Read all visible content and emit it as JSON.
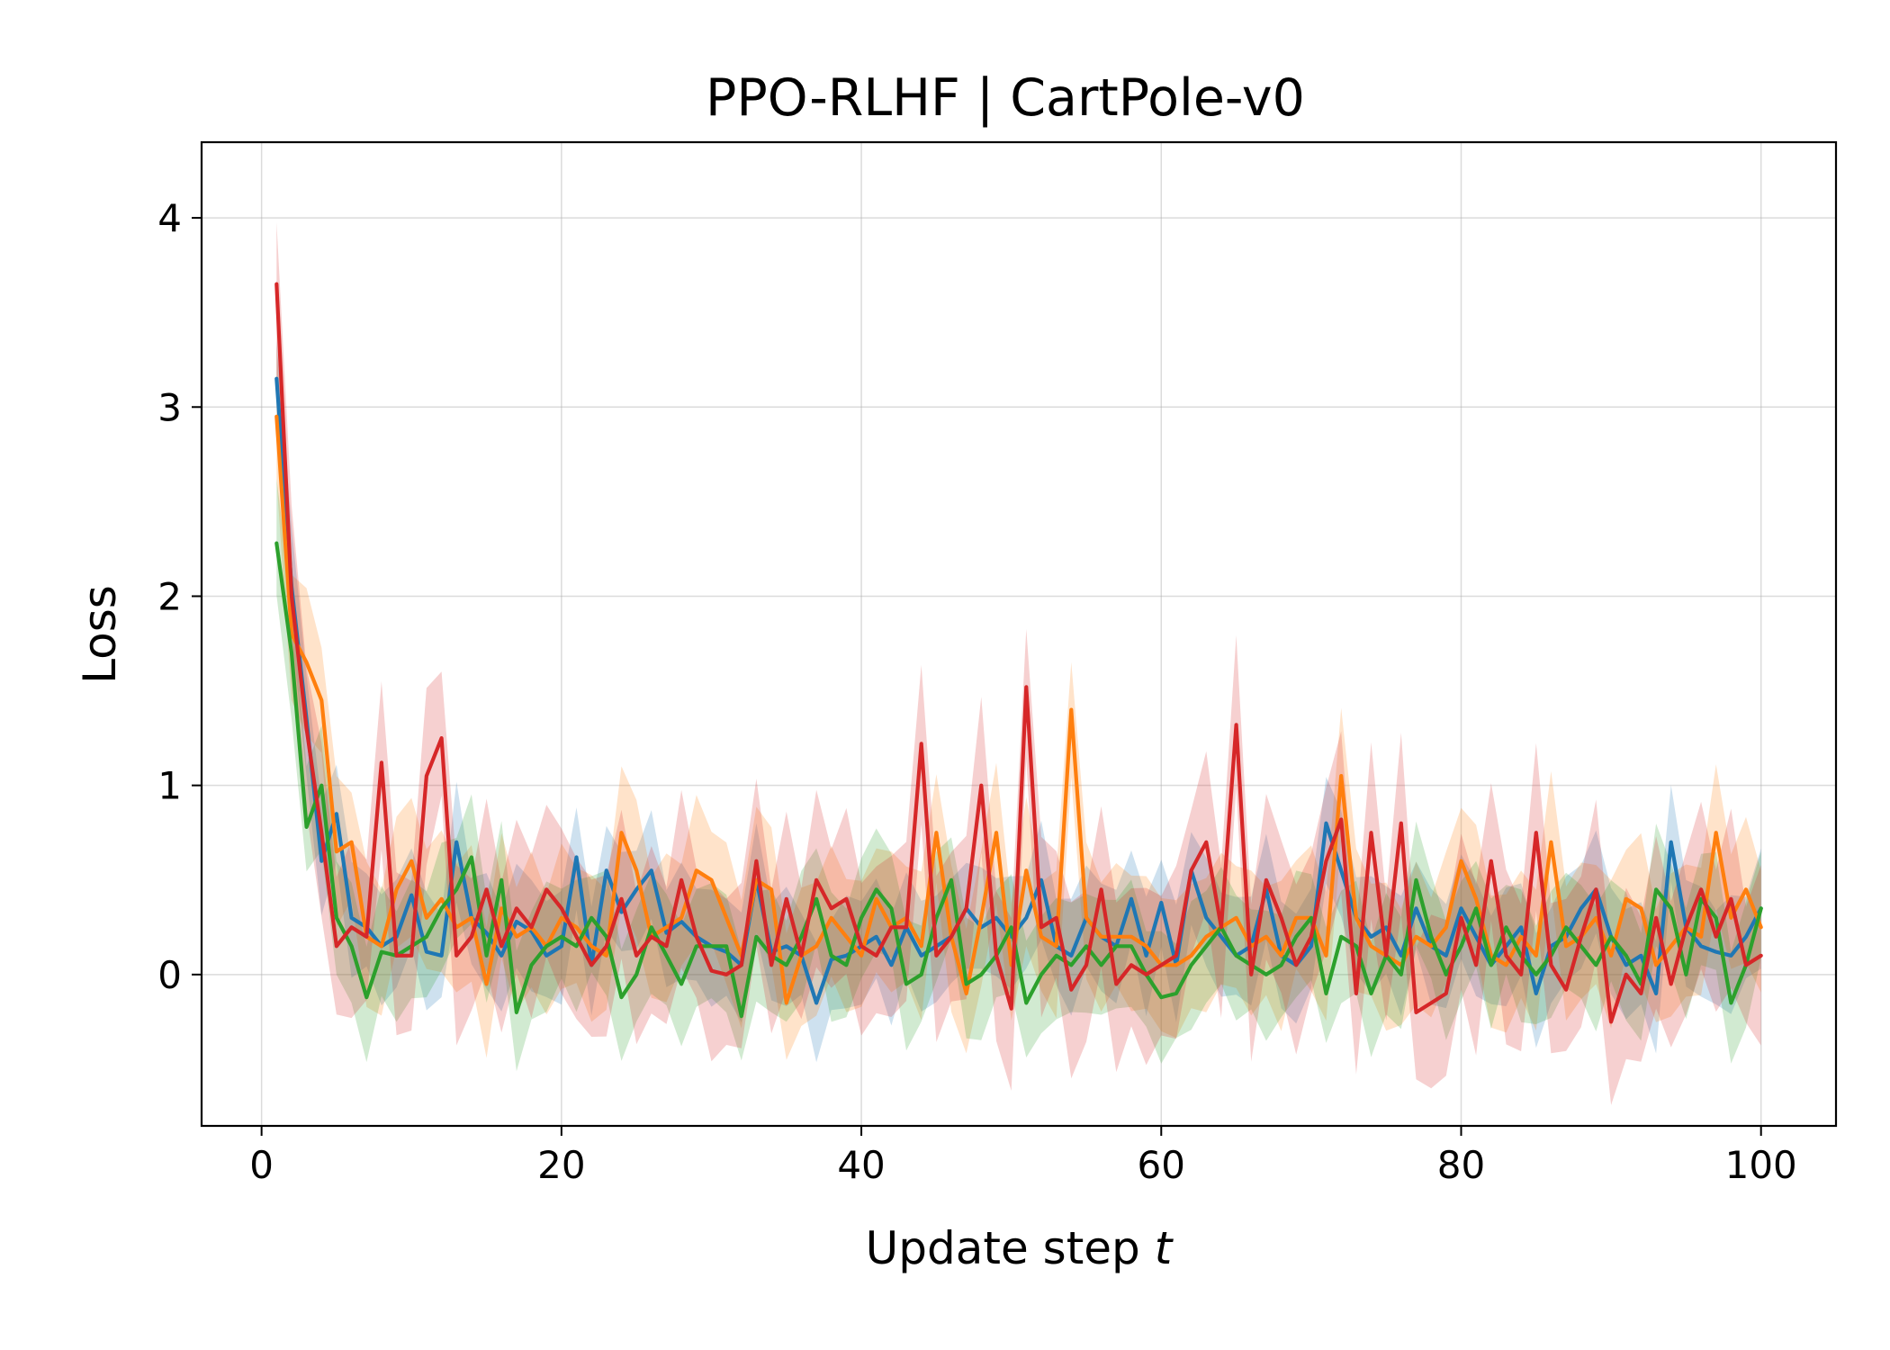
{
  "chart_data": {
    "type": "line",
    "title": "PPO-RLHF | CartPole-v0",
    "xlabel_text": "Update step ",
    "xlabel_var": "t",
    "ylabel": "Loss",
    "xlim": [
      -4,
      105
    ],
    "ylim": [
      -0.8,
      4.4
    ],
    "xticks": [
      0,
      20,
      40,
      60,
      80,
      100
    ],
    "yticks": [
      0,
      1,
      2,
      3,
      4
    ],
    "grid": true,
    "legend": "none",
    "x_start": 1,
    "x_step": 1,
    "series": [
      {
        "color": "#1f77b4",
        "band_half_width": 0.2,
        "values": [
          3.15,
          2.05,
          1.35,
          0.6,
          0.85,
          0.3,
          0.25,
          0.15,
          0.2,
          0.42,
          0.12,
          0.1,
          0.7,
          0.3,
          0.22,
          0.1,
          0.28,
          0.23,
          0.1,
          0.15,
          0.62,
          0.05,
          0.55,
          0.33,
          0.45,
          0.55,
          0.22,
          0.28,
          0.2,
          0.15,
          0.12,
          0.05,
          0.5,
          0.12,
          0.15,
          0.1,
          -0.15,
          0.08,
          0.1,
          0.15,
          0.2,
          0.05,
          0.25,
          0.1,
          0.15,
          0.2,
          0.35,
          0.25,
          0.3,
          0.2,
          0.3,
          0.5,
          0.15,
          0.1,
          0.3,
          0.2,
          0.15,
          0.4,
          0.1,
          0.38,
          0.05,
          0.55,
          0.3,
          0.2,
          0.1,
          0.15,
          0.45,
          0.1,
          0.05,
          0.15,
          0.8,
          0.55,
          0.3,
          0.2,
          0.25,
          0.1,
          0.35,
          0.15,
          0.1,
          0.35,
          0.2,
          0.05,
          0.15,
          0.25,
          -0.1,
          0.15,
          0.2,
          0.35,
          0.45,
          0.2,
          0.05,
          0.1,
          -0.1,
          0.7,
          0.25,
          0.15,
          0.12,
          0.1,
          0.2,
          0.35
        ]
      },
      {
        "color": "#ff7f0e",
        "band_half_width": 0.25,
        "values": [
          2.95,
          1.8,
          1.65,
          1.45,
          0.65,
          0.7,
          0.2,
          0.15,
          0.45,
          0.6,
          0.3,
          0.4,
          0.25,
          0.3,
          -0.05,
          0.35,
          0.2,
          0.25,
          0.15,
          0.3,
          0.25,
          0.15,
          0.1,
          0.75,
          0.55,
          0.2,
          0.25,
          0.3,
          0.55,
          0.5,
          0.3,
          0.1,
          0.5,
          0.45,
          -0.15,
          0.1,
          0.15,
          0.3,
          0.2,
          0.1,
          0.4,
          0.25,
          0.3,
          0.15,
          0.75,
          0.2,
          -0.1,
          0.3,
          0.75,
          0.05,
          0.55,
          0.2,
          0.15,
          1.4,
          0.3,
          0.2,
          0.2,
          0.2,
          0.15,
          0.05,
          0.05,
          0.1,
          0.2,
          0.25,
          0.3,
          0.15,
          0.2,
          0.1,
          0.3,
          0.3,
          0.1,
          1.05,
          0.3,
          0.15,
          0.1,
          0.05,
          0.2,
          0.15,
          0.25,
          0.6,
          0.4,
          0.1,
          0.05,
          0.2,
          0.1,
          0.7,
          0.15,
          0.2,
          0.3,
          0.1,
          0.4,
          0.35,
          0.05,
          0.15,
          0.25,
          0.2,
          0.75,
          0.3,
          0.45,
          0.25
        ]
      },
      {
        "color": "#2ca02c",
        "band_half_width": 0.22,
        "values": [
          2.28,
          1.7,
          0.78,
          1.0,
          0.3,
          0.15,
          -0.12,
          0.12,
          0.1,
          0.15,
          0.2,
          0.35,
          0.45,
          0.62,
          0.1,
          0.5,
          -0.2,
          0.05,
          0.15,
          0.2,
          0.15,
          0.3,
          0.2,
          -0.12,
          0.0,
          0.25,
          0.1,
          -0.05,
          0.15,
          0.15,
          0.15,
          -0.22,
          0.2,
          0.1,
          0.05,
          0.2,
          0.4,
          0.1,
          0.05,
          0.3,
          0.45,
          0.35,
          -0.05,
          0.0,
          0.3,
          0.5,
          -0.05,
          0.0,
          0.1,
          0.25,
          -0.15,
          0.0,
          0.1,
          0.05,
          0.15,
          0.05,
          0.15,
          0.15,
          0.0,
          -0.12,
          -0.1,
          0.05,
          0.15,
          0.25,
          0.1,
          0.05,
          0.0,
          0.05,
          0.2,
          0.3,
          -0.1,
          0.2,
          0.15,
          -0.1,
          0.1,
          0.0,
          0.5,
          0.2,
          0.0,
          0.15,
          0.35,
          0.05,
          0.25,
          0.1,
          0.0,
          0.1,
          0.25,
          0.15,
          0.05,
          0.2,
          0.1,
          -0.05,
          0.45,
          0.35,
          0.0,
          0.4,
          0.3,
          -0.15,
          0.05,
          0.35
        ]
      },
      {
        "color": "#d62728",
        "band_half_width": 0.3,
        "values": [
          3.65,
          2.0,
          1.3,
          0.75,
          0.15,
          0.25,
          0.2,
          1.12,
          0.1,
          0.1,
          1.05,
          1.25,
          0.1,
          0.2,
          0.45,
          0.15,
          0.35,
          0.25,
          0.45,
          0.35,
          0.2,
          0.05,
          0.15,
          0.4,
          0.1,
          0.2,
          0.15,
          0.5,
          0.2,
          0.02,
          0.0,
          0.05,
          0.6,
          0.05,
          0.4,
          0.1,
          0.5,
          0.35,
          0.4,
          0.15,
          0.1,
          0.25,
          0.25,
          1.22,
          0.1,
          0.2,
          0.35,
          1.0,
          0.1,
          -0.18,
          1.52,
          0.25,
          0.3,
          -0.08,
          0.05,
          0.45,
          -0.05,
          0.05,
          0.0,
          0.05,
          0.1,
          0.55,
          0.7,
          0.25,
          1.32,
          0.0,
          0.5,
          0.3,
          0.05,
          0.2,
          0.6,
          0.82,
          -0.1,
          0.75,
          0.1,
          0.8,
          -0.2,
          -0.15,
          -0.1,
          0.3,
          0.05,
          0.6,
          0.1,
          0.0,
          0.75,
          0.05,
          -0.08,
          0.2,
          0.45,
          -0.25,
          0.0,
          -0.1,
          0.3,
          -0.05,
          0.25,
          0.45,
          0.2,
          0.4,
          0.05,
          0.1
        ]
      }
    ]
  }
}
